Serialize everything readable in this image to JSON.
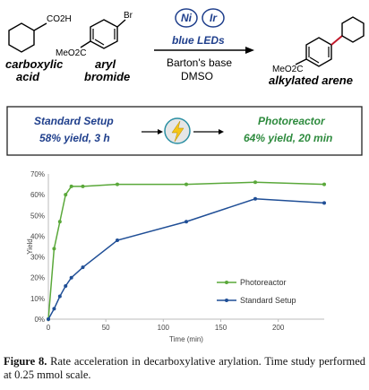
{
  "scheme": {
    "reactant1": {
      "group": "CO2H",
      "label_line1": "carboxylic",
      "label_line2": "acid"
    },
    "reactant2": {
      "group_top": "Br",
      "group_bottom": "MeO2C",
      "label_line1": "aryl",
      "label_line2": "bromide"
    },
    "catalysts": [
      "Ni",
      "Ir"
    ],
    "light": "blue LEDs",
    "base": "Barton's base",
    "solvent": "DMSO",
    "product": {
      "group": "MeO2C",
      "label": "alkylated arene"
    }
  },
  "comparison": {
    "left_title": "Standard Setup",
    "left_result": "58% yield, 3 h",
    "right_title": "Photoreactor",
    "right_result": "64% yield, 20 min",
    "icon": "lightning-bolt-icon"
  },
  "chart_data": {
    "type": "line",
    "xlabel": "Time (min)",
    "ylabel": "Yield",
    "xlim": [
      0,
      240
    ],
    "ylim": [
      0,
      70
    ],
    "xticks": [
      "0",
      "50",
      "100",
      "150",
      "200"
    ],
    "yticks": [
      "0%",
      "10%",
      "20%",
      "30%",
      "40%",
      "50%",
      "60%",
      "70%"
    ],
    "legend_position": "bottom-right",
    "grid": false,
    "series": [
      {
        "name": "Photoreactor",
        "color": "#5aa83a",
        "x": [
          0,
          5,
          10,
          15,
          20,
          30,
          60,
          120,
          180,
          240
        ],
        "y": [
          0,
          34,
          47,
          60,
          64,
          64,
          65,
          65,
          66,
          65
        ]
      },
      {
        "name": "Standard Setup",
        "color": "#1f4e96",
        "x": [
          0,
          5,
          10,
          15,
          20,
          30,
          60,
          120,
          180,
          240
        ],
        "y": [
          0,
          5,
          11,
          16,
          20,
          25,
          38,
          47,
          58,
          56
        ]
      }
    ]
  },
  "caption": {
    "label": "Figure 8.",
    "text": "Rate acceleration in decarboxylative arylation. Time study performed at 0.25 mmol scale."
  }
}
